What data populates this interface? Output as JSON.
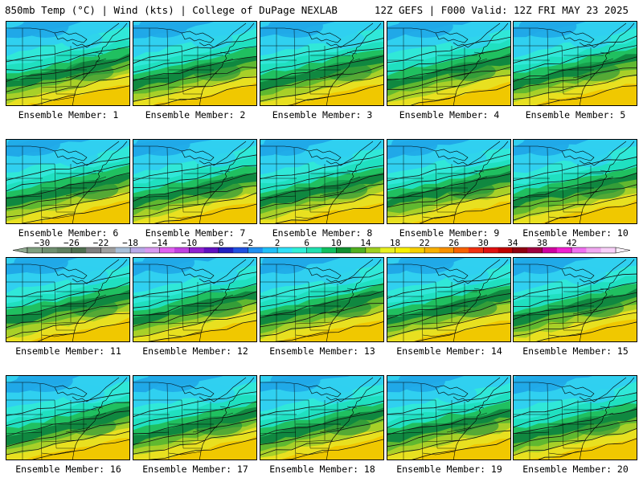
{
  "header": {
    "left": "850mb Temp (°C) | Wind (kts) | College of DuPage NEXLAB",
    "right": "12Z GEFS | F000 Valid: 12Z FRI MAY 23 2025"
  },
  "panels": [
    {
      "member": 1,
      "label": "Ensemble Member: 1"
    },
    {
      "member": 2,
      "label": "Ensemble Member: 2"
    },
    {
      "member": 3,
      "label": "Ensemble Member: 3"
    },
    {
      "member": 4,
      "label": "Ensemble Member: 4"
    },
    {
      "member": 5,
      "label": "Ensemble Member: 5"
    },
    {
      "member": 6,
      "label": "Ensemble Member: 6"
    },
    {
      "member": 7,
      "label": "Ensemble Member: 7"
    },
    {
      "member": 8,
      "label": "Ensemble Member: 8"
    },
    {
      "member": 9,
      "label": "Ensemble Member: 9"
    },
    {
      "member": 10,
      "label": "Ensemble Member: 10"
    },
    {
      "member": 11,
      "label": "Ensemble Member: 11"
    },
    {
      "member": 12,
      "label": "Ensemble Member: 12"
    },
    {
      "member": 13,
      "label": "Ensemble Member: 13"
    },
    {
      "member": 14,
      "label": "Ensemble Member: 14"
    },
    {
      "member": 15,
      "label": "Ensemble Member: 15"
    },
    {
      "member": 16,
      "label": "Ensemble Member: 16"
    },
    {
      "member": 17,
      "label": "Ensemble Member: 17"
    },
    {
      "member": 18,
      "label": "Ensemble Member: 18"
    },
    {
      "member": 19,
      "label": "Ensemble Member: 19"
    },
    {
      "member": 20,
      "label": "Ensemble Member: 20"
    }
  ],
  "colorbar": {
    "ticks": [
      "−30",
      "−26",
      "−22",
      "−18",
      "−14",
      "−10",
      "−6",
      "−2",
      "2",
      "6",
      "10",
      "14",
      "18",
      "22",
      "26",
      "30",
      "34",
      "38",
      "42"
    ],
    "colors": [
      "#7f9f7f",
      "#6f8f6f",
      "#5f7f5f",
      "#4f6f4f",
      "#7f7f7f",
      "#9f9f9f",
      "#a8bfd8",
      "#b8a8e8",
      "#d898f0",
      "#e060f0",
      "#c040e0",
      "#9020d0",
      "#6010c0",
      "#2020c0",
      "#2050e0",
      "#2090f0",
      "#20c0f8",
      "#30e0f8",
      "#30f0d8",
      "#20e0b0",
      "#10c060",
      "#109030",
      "#50b020",
      "#a0d020",
      "#e8f020",
      "#f8f000",
      "#f8d000",
      "#f8b000",
      "#f89000",
      "#f86000",
      "#f03010",
      "#e01010",
      "#c00000",
      "#900010",
      "#a00040",
      "#d000a0",
      "#f020d0",
      "#f070f0",
      "#f0a8f0",
      "#f8d0f8"
    ]
  },
  "map_colors": {
    "deep_cyan": "#20a8e8",
    "cyan": "#30d0f0",
    "teal": "#20e0c0",
    "aqua": "#30e8d8",
    "green": "#20c060",
    "dark_green": "#108840",
    "lime": "#60b830",
    "yellow_green": "#a8d028",
    "yellow": "#e8e020",
    "gold": "#f0c800",
    "lines": "#000000"
  }
}
